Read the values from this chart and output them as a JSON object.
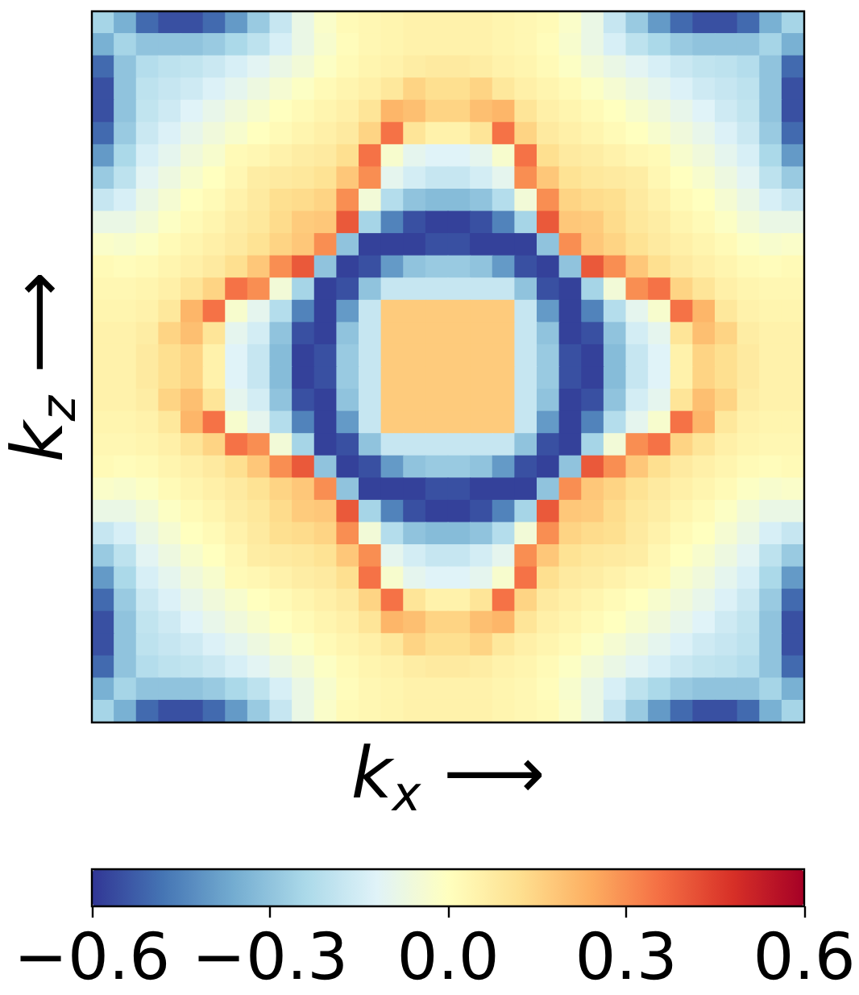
{
  "chart_data": {
    "type": "heatmap",
    "xlabel": "k$_{x}$ ⟶",
    "ylabel": "k$_{z}$ ⟶",
    "categories": [
      null,
      null,
      null,
      null,
      null,
      null,
      null,
      null,
      null,
      null,
      null,
      null,
      null,
      null,
      null,
      null,
      null,
      null,
      null,
      null,
      null,
      null,
      null,
      null,
      null,
      null,
      null,
      null,
      null,
      null,
      null,
      null
    ],
    "y_categories": [
      null,
      null,
      null,
      null,
      null,
      null,
      null,
      null,
      null,
      null,
      null,
      null,
      null,
      null,
      null,
      null,
      null,
      null,
      null,
      null,
      null,
      null,
      null,
      null,
      null,
      null,
      null,
      null,
      null,
      null,
      null,
      null
    ],
    "cells": [
      [
        -0.25,
        -0.35,
        -0.5,
        -0.55,
        -0.55,
        -0.5,
        -0.4,
        -0.28,
        -0.18,
        -0.08,
        -0.02,
        0.02,
        0.03,
        0.04,
        0.05,
        0.05,
        0.05,
        0.05,
        0.04,
        0.03,
        0.02,
        -0.02,
        -0.08,
        -0.18,
        -0.28,
        -0.4,
        -0.5,
        -0.55,
        -0.55,
        -0.5,
        -0.35,
        -0.25
      ],
      [
        -0.35,
        -0.25,
        -0.3,
        -0.3,
        -0.3,
        -0.28,
        -0.24,
        -0.2,
        -0.14,
        -0.08,
        -0.03,
        0.01,
        0.03,
        0.04,
        0.05,
        0.05,
        0.05,
        0.05,
        0.04,
        0.03,
        0.01,
        -0.03,
        -0.08,
        -0.14,
        -0.2,
        -0.24,
        -0.28,
        -0.3,
        -0.3,
        -0.3,
        -0.25,
        -0.35
      ],
      [
        -0.5,
        -0.3,
        -0.22,
        -0.2,
        -0.19,
        -0.17,
        -0.14,
        -0.11,
        -0.08,
        -0.05,
        -0.01,
        0.02,
        0.04,
        0.05,
        0.07,
        0.08,
        0.08,
        0.07,
        0.05,
        0.04,
        0.02,
        -0.01,
        -0.05,
        -0.08,
        -0.11,
        -0.14,
        -0.17,
        -0.19,
        -0.2,
        -0.22,
        -0.3,
        -0.5
      ],
      [
        -0.55,
        -0.3,
        -0.2,
        -0.18,
        -0.16,
        -0.13,
        -0.1,
        -0.07,
        -0.04,
        -0.01,
        0.02,
        0.04,
        0.06,
        0.09,
        0.15,
        0.12,
        0.12,
        0.15,
        0.09,
        0.06,
        0.04,
        0.02,
        -0.01,
        -0.04,
        -0.07,
        -0.1,
        -0.13,
        -0.16,
        -0.18,
        -0.2,
        -0.3,
        -0.55
      ],
      [
        -0.55,
        -0.3,
        -0.19,
        -0.16,
        -0.12,
        -0.09,
        -0.06,
        -0.03,
        0,
        0.02,
        0.04,
        0.06,
        0.1,
        0.22,
        0.2,
        0.15,
        0.15,
        0.2,
        0.22,
        0.1,
        0.06,
        0.04,
        0.02,
        0,
        -0.03,
        -0.06,
        -0.09,
        -0.12,
        -0.16,
        -0.19,
        -0.3,
        -0.55
      ],
      [
        -0.5,
        -0.28,
        -0.17,
        -0.13,
        -0.09,
        -0.06,
        -0.03,
        0,
        0.02,
        0.04,
        0.06,
        0.08,
        0.15,
        0.35,
        0.1,
        0.05,
        0.05,
        0.1,
        0.35,
        0.15,
        0.08,
        0.06,
        0.04,
        0.02,
        0,
        -0.03,
        -0.06,
        -0.09,
        -0.13,
        -0.17,
        -0.28,
        -0.5
      ],
      [
        -0.4,
        -0.24,
        -0.14,
        -0.1,
        -0.06,
        -0.03,
        0.02,
        0.03,
        0.05,
        0.07,
        0.08,
        0.12,
        0.35,
        -0.03,
        -0.1,
        -0.12,
        -0.12,
        -0.1,
        -0.03,
        0.35,
        0.12,
        0.08,
        0.07,
        0.05,
        0.03,
        0.02,
        -0.03,
        -0.06,
        -0.1,
        -0.14,
        -0.24,
        -0.4
      ],
      [
        -0.28,
        -0.2,
        -0.11,
        -0.07,
        -0.03,
        0,
        0.03,
        0.07,
        0.08,
        0.09,
        0.11,
        0.18,
        0.3,
        -0.1,
        -0.15,
        -0.18,
        -0.18,
        -0.15,
        -0.1,
        0.3,
        0.18,
        0.11,
        0.09,
        0.08,
        0.07,
        0.03,
        0,
        -0.03,
        -0.07,
        -0.11,
        -0.2,
        -0.28
      ],
      [
        -0.18,
        -0.14,
        -0.08,
        -0.04,
        0,
        0.02,
        0.05,
        0.08,
        0.12,
        0.13,
        0.15,
        0.3,
        -0.05,
        -0.22,
        -0.3,
        -0.32,
        -0.32,
        -0.3,
        -0.22,
        -0.05,
        0.3,
        0.15,
        0.13,
        0.12,
        0.08,
        0.05,
        0.02,
        0,
        -0.04,
        -0.08,
        -0.14,
        -0.18
      ],
      [
        -0.08,
        -0.08,
        -0.05,
        -0.01,
        0.02,
        0.04,
        0.07,
        0.09,
        0.13,
        0.17,
        0.18,
        0.4,
        -0.25,
        -0.45,
        -0.55,
        -0.58,
        -0.58,
        -0.55,
        -0.45,
        -0.25,
        0.4,
        0.18,
        0.17,
        0.13,
        0.09,
        0.07,
        0.04,
        0.02,
        -0.01,
        -0.05,
        -0.08,
        -0.08
      ],
      [
        -0.02,
        -0.03,
        -0.01,
        0.02,
        0.04,
        0.06,
        0.08,
        0.11,
        0.15,
        0.18,
        0.3,
        -0.3,
        -0.58,
        -0.58,
        -0.58,
        -0.55,
        -0.55,
        -0.58,
        -0.58,
        -0.58,
        -0.3,
        0.3,
        0.18,
        0.15,
        0.11,
        0.08,
        0.06,
        0.04,
        0.02,
        -0.01,
        -0.03,
        -0.02
      ],
      [
        0.02,
        0.01,
        0.02,
        0.04,
        0.06,
        0.08,
        0.12,
        0.18,
        0.3,
        0.4,
        -0.3,
        -0.58,
        -0.55,
        -0.4,
        -0.3,
        -0.28,
        -0.28,
        -0.3,
        -0.4,
        -0.55,
        -0.58,
        -0.3,
        0.4,
        0.3,
        0.18,
        0.12,
        0.08,
        0.06,
        0.04,
        0.02,
        0.01,
        0.02
      ],
      [
        0.03,
        0.03,
        0.04,
        0.06,
        0.1,
        0.15,
        0.35,
        0.3,
        -0.05,
        -0.25,
        -0.58,
        -0.55,
        -0.3,
        -0.18,
        -0.18,
        -0.18,
        -0.18,
        -0.18,
        -0.18,
        -0.3,
        -0.55,
        -0.58,
        -0.25,
        -0.05,
        0.3,
        0.35,
        0.15,
        0.1,
        0.06,
        0.04,
        0.03,
        0.03
      ],
      [
        0.04,
        0.04,
        0.05,
        0.09,
        0.22,
        0.35,
        -0.03,
        -0.1,
        -0.22,
        -0.45,
        -0.58,
        -0.4,
        -0.18,
        0.17,
        0.17,
        0.17,
        0.17,
        0.17,
        0.17,
        -0.18,
        -0.4,
        -0.58,
        -0.45,
        -0.22,
        -0.1,
        -0.03,
        0.35,
        0.22,
        0.09,
        0.05,
        0.04,
        0.04
      ],
      [
        0.05,
        0.05,
        0.07,
        0.15,
        0.2,
        0.1,
        -0.1,
        -0.15,
        -0.3,
        -0.55,
        -0.58,
        -0.3,
        -0.18,
        0.17,
        0.17,
        0.17,
        0.17,
        0.17,
        0.17,
        -0.18,
        -0.3,
        -0.58,
        -0.55,
        -0.3,
        -0.15,
        -0.1,
        0.1,
        0.2,
        0.15,
        0.07,
        0.05,
        0.05
      ],
      [
        0.05,
        0.05,
        0.08,
        0.12,
        0.15,
        0.05,
        -0.12,
        -0.18,
        -0.32,
        -0.58,
        -0.55,
        -0.28,
        -0.18,
        0.17,
        0.17,
        0.17,
        0.17,
        0.17,
        0.17,
        -0.18,
        -0.28,
        -0.55,
        -0.58,
        -0.32,
        -0.18,
        -0.12,
        0.05,
        0.15,
        0.12,
        0.08,
        0.05,
        0.05
      ],
      [
        0.05,
        0.05,
        0.08,
        0.12,
        0.15,
        0.05,
        -0.12,
        -0.18,
        -0.32,
        -0.58,
        -0.55,
        -0.28,
        -0.18,
        0.17,
        0.17,
        0.17,
        0.17,
        0.17,
        0.17,
        -0.18,
        -0.28,
        -0.55,
        -0.58,
        -0.32,
        -0.18,
        -0.12,
        0.05,
        0.15,
        0.12,
        0.08,
        0.05,
        0.05
      ],
      [
        0.05,
        0.05,
        0.07,
        0.15,
        0.2,
        0.1,
        -0.1,
        -0.15,
        -0.3,
        -0.55,
        -0.58,
        -0.3,
        -0.18,
        0.17,
        0.17,
        0.17,
        0.17,
        0.17,
        0.17,
        -0.18,
        -0.3,
        -0.58,
        -0.55,
        -0.3,
        -0.15,
        -0.1,
        0.1,
        0.2,
        0.15,
        0.07,
        0.05,
        0.05
      ],
      [
        0.04,
        0.04,
        0.05,
        0.09,
        0.22,
        0.35,
        -0.03,
        -0.1,
        -0.22,
        -0.45,
        -0.58,
        -0.4,
        -0.18,
        0.17,
        0.17,
        0.17,
        0.17,
        0.17,
        0.17,
        -0.18,
        -0.4,
        -0.58,
        -0.45,
        -0.22,
        -0.1,
        -0.03,
        0.35,
        0.22,
        0.09,
        0.05,
        0.04,
        0.04
      ],
      [
        0.03,
        0.03,
        0.04,
        0.06,
        0.1,
        0.15,
        0.35,
        0.3,
        -0.05,
        -0.25,
        -0.58,
        -0.55,
        -0.3,
        -0.18,
        -0.18,
        -0.18,
        -0.18,
        -0.18,
        -0.18,
        -0.3,
        -0.55,
        -0.58,
        -0.25,
        -0.05,
        0.3,
        0.35,
        0.15,
        0.1,
        0.06,
        0.04,
        0.03,
        0.03
      ],
      [
        0.02,
        0.01,
        0.02,
        0.04,
        0.06,
        0.08,
        0.12,
        0.18,
        0.3,
        0.4,
        -0.3,
        -0.58,
        -0.55,
        -0.4,
        -0.3,
        -0.28,
        -0.28,
        -0.3,
        -0.4,
        -0.55,
        -0.58,
        -0.3,
        0.4,
        0.3,
        0.18,
        0.12,
        0.08,
        0.06,
        0.04,
        0.02,
        0.01,
        0.02
      ],
      [
        -0.02,
        -0.03,
        -0.01,
        0.02,
        0.04,
        0.06,
        0.08,
        0.11,
        0.15,
        0.18,
        0.3,
        -0.3,
        -0.58,
        -0.58,
        -0.58,
        -0.55,
        -0.55,
        -0.58,
        -0.58,
        -0.58,
        -0.3,
        0.3,
        0.18,
        0.15,
        0.11,
        0.08,
        0.06,
        0.04,
        0.02,
        -0.01,
        -0.03,
        -0.02
      ],
      [
        -0.08,
        -0.08,
        -0.05,
        -0.01,
        0.02,
        0.04,
        0.07,
        0.09,
        0.13,
        0.17,
        0.18,
        0.4,
        -0.25,
        -0.45,
        -0.55,
        -0.58,
        -0.58,
        -0.55,
        -0.45,
        -0.25,
        0.4,
        0.18,
        0.17,
        0.13,
        0.09,
        0.07,
        0.04,
        0.02,
        -0.01,
        -0.05,
        -0.08,
        -0.08
      ],
      [
        -0.18,
        -0.14,
        -0.08,
        -0.04,
        0,
        0.02,
        0.05,
        0.08,
        0.12,
        0.13,
        0.15,
        0.3,
        -0.05,
        -0.22,
        -0.3,
        -0.32,
        -0.32,
        -0.3,
        -0.22,
        -0.05,
        0.3,
        0.15,
        0.13,
        0.12,
        0.08,
        0.05,
        0.02,
        0,
        -0.04,
        -0.08,
        -0.14,
        -0.18
      ],
      [
        -0.28,
        -0.2,
        -0.11,
        -0.07,
        -0.03,
        0,
        0.03,
        0.07,
        0.08,
        0.09,
        0.11,
        0.18,
        0.3,
        -0.1,
        -0.15,
        -0.18,
        -0.18,
        -0.15,
        -0.1,
        0.3,
        0.18,
        0.11,
        0.09,
        0.08,
        0.07,
        0.03,
        0,
        -0.03,
        -0.07,
        -0.11,
        -0.2,
        -0.28
      ],
      [
        -0.4,
        -0.24,
        -0.14,
        -0.1,
        -0.06,
        -0.03,
        0.02,
        0.03,
        0.05,
        0.07,
        0.08,
        0.12,
        0.35,
        -0.03,
        -0.1,
        -0.12,
        -0.12,
        -0.1,
        -0.03,
        0.35,
        0.12,
        0.08,
        0.07,
        0.05,
        0.03,
        0.02,
        -0.03,
        -0.06,
        -0.1,
        -0.14,
        -0.24,
        -0.4
      ],
      [
        -0.5,
        -0.28,
        -0.17,
        -0.13,
        -0.09,
        -0.06,
        -0.03,
        0,
        0.02,
        0.04,
        0.06,
        0.08,
        0.15,
        0.35,
        0.1,
        0.05,
        0.05,
        0.1,
        0.35,
        0.15,
        0.08,
        0.06,
        0.04,
        0.02,
        0,
        -0.03,
        -0.06,
        -0.09,
        -0.13,
        -0.17,
        -0.28,
        -0.5
      ],
      [
        -0.55,
        -0.3,
        -0.19,
        -0.16,
        -0.12,
        -0.09,
        -0.06,
        -0.03,
        0,
        0.02,
        0.04,
        0.06,
        0.1,
        0.22,
        0.2,
        0.15,
        0.15,
        0.2,
        0.22,
        0.1,
        0.06,
        0.04,
        0.02,
        0,
        -0.03,
        -0.06,
        -0.09,
        -0.12,
        -0.16,
        -0.19,
        -0.3,
        -0.55
      ],
      [
        -0.55,
        -0.3,
        -0.2,
        -0.18,
        -0.16,
        -0.13,
        -0.1,
        -0.07,
        -0.04,
        -0.01,
        0.02,
        0.04,
        0.06,
        0.09,
        0.15,
        0.12,
        0.12,
        0.15,
        0.09,
        0.06,
        0.04,
        0.02,
        -0.01,
        -0.04,
        -0.07,
        -0.1,
        -0.13,
        -0.16,
        -0.18,
        -0.2,
        -0.3,
        -0.55
      ],
      [
        -0.5,
        -0.3,
        -0.22,
        -0.2,
        -0.19,
        -0.17,
        -0.14,
        -0.11,
        -0.08,
        -0.05,
        -0.01,
        0.02,
        0.04,
        0.05,
        0.07,
        0.08,
        0.08,
        0.07,
        0.05,
        0.04,
        0.02,
        -0.01,
        -0.05,
        -0.08,
        -0.11,
        -0.14,
        -0.17,
        -0.19,
        -0.2,
        -0.22,
        -0.3,
        -0.5
      ],
      [
        -0.35,
        -0.25,
        -0.3,
        -0.3,
        -0.3,
        -0.28,
        -0.24,
        -0.2,
        -0.14,
        -0.08,
        -0.03,
        0.01,
        0.03,
        0.04,
        0.05,
        0.05,
        0.05,
        0.05,
        0.04,
        0.03,
        0.01,
        -0.03,
        -0.08,
        -0.14,
        -0.2,
        -0.24,
        -0.28,
        -0.3,
        -0.3,
        -0.3,
        -0.25,
        -0.35
      ],
      [
        -0.25,
        -0.35,
        -0.5,
        -0.55,
        -0.55,
        -0.5,
        -0.4,
        -0.28,
        -0.18,
        -0.08,
        -0.02,
        0.02,
        0.03,
        0.04,
        0.05,
        0.05,
        0.05,
        0.05,
        0.04,
        0.03,
        0.02,
        -0.02,
        -0.08,
        -0.18,
        -0.28,
        -0.4,
        -0.5,
        -0.55,
        -0.55,
        -0.5,
        -0.35,
        -0.25
      ]
    ],
    "clim": [
      -0.6,
      0.6
    ],
    "cticks": [
      {
        "value": -0.6,
        "label": "−0.6"
      },
      {
        "value": -0.3,
        "label": "−0.3"
      },
      {
        "value": 0,
        "label": "0.0"
      },
      0.3,
      0.6
    ],
    "tick_labels": false
  }
}
